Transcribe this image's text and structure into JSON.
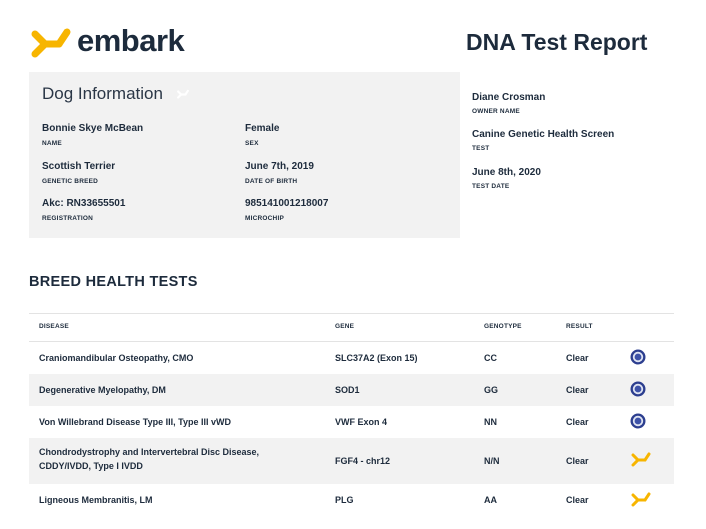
{
  "header": {
    "brand": "embark",
    "report_title": "DNA Test Report"
  },
  "dog_info": {
    "title": "Dog Information",
    "fields": [
      {
        "value": "Bonnie Skye McBean",
        "label": "NAME"
      },
      {
        "value": "Female",
        "label": "SEX"
      },
      {
        "value": "Scottish Terrier",
        "label": "GENETIC BREED"
      },
      {
        "value": "June 7th, 2019",
        "label": "DATE OF BIRTH"
      },
      {
        "value": "Akc: RN33655501",
        "label": "REGISTRATION"
      },
      {
        "value": "985141001218007",
        "label": "MICROCHIP"
      }
    ]
  },
  "owner_info": [
    {
      "value": "Diane Crosman",
      "label": "OWNER NAME"
    },
    {
      "value": "Canine Genetic Health Screen",
      "label": "TEST"
    },
    {
      "value": "June 8th, 2020",
      "label": "TEST DATE"
    }
  ],
  "breed_health": {
    "title": "BREED HEALTH TESTS",
    "columns": [
      "DISEASE",
      "GENE",
      "GENOTYPE",
      "RESULT"
    ],
    "rows": [
      {
        "disease": "Craniomandibular Osteopathy, CMO",
        "gene": "SLC37A2 (Exon 15)",
        "genotype": "CC",
        "result": "Clear",
        "icon": "ofa-seal-icon"
      },
      {
        "disease": "Degenerative Myelopathy, DM",
        "gene": "SOD1",
        "genotype": "GG",
        "result": "Clear",
        "icon": "ofa-seal-icon"
      },
      {
        "disease": "Von Willebrand Disease Type III, Type III vWD",
        "gene": "VWF Exon 4",
        "genotype": "NN",
        "result": "Clear",
        "icon": "ofa-seal-icon"
      },
      {
        "disease": "Chondrodystrophy and Intervertebral Disc Disease, CDDY/IVDD, Type I IVDD",
        "gene": "FGF4 - chr12",
        "genotype": "N/N",
        "result": "Clear",
        "icon": "embark-bone-icon"
      },
      {
        "disease": "Ligneous Membranitis, LM",
        "gene": "PLG",
        "genotype": "AA",
        "result": "Clear",
        "icon": "embark-bone-icon"
      }
    ]
  },
  "colors": {
    "brand_yellow": "#f7b500",
    "text_dark": "#1d2b3c",
    "panel_gray": "#f2f2f2",
    "seal_blue": "#2c3e8f"
  }
}
